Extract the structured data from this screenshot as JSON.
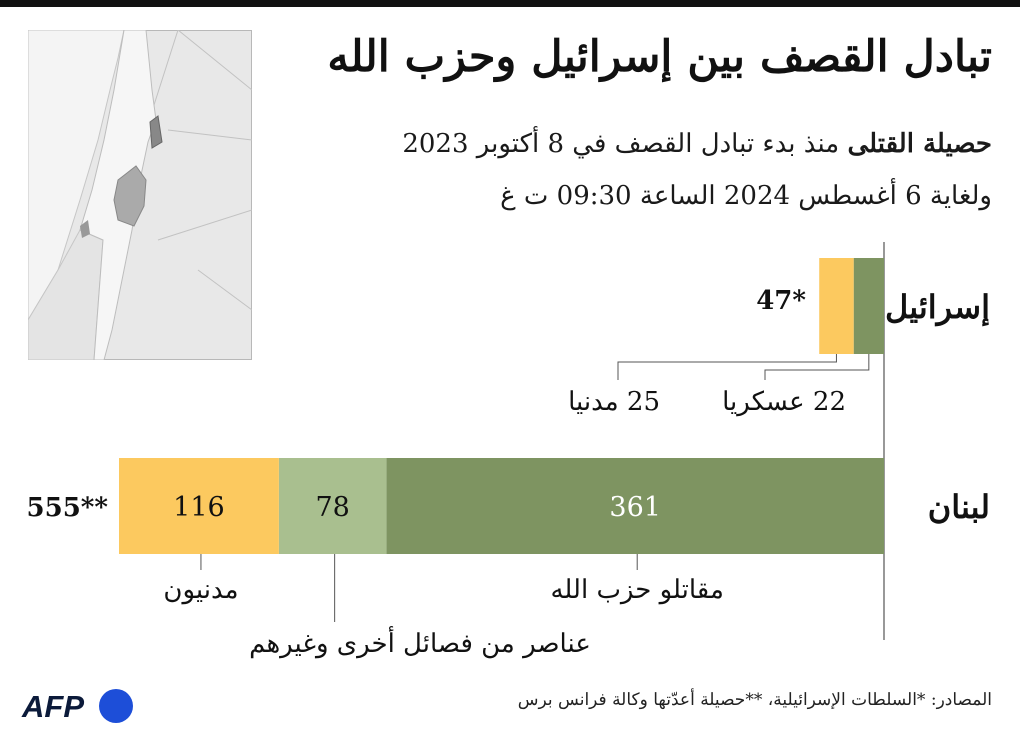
{
  "header": {
    "title": "تبادل القصف بين إسرائيل وحزب الله",
    "subtitle_bold": "حصيلة القتلى",
    "subtitle_rest": "منذ بدء تبادل القصف في 8 أكتوبر 2023",
    "subtitle_line2": "ولغاية 6 أغسطس 2024 الساعة 09:30 ت غ"
  },
  "colors": {
    "civilians": "#fcc95f",
    "soldiers": "#7e9461",
    "others": "#a9bf8f",
    "axis": "#555555",
    "map_land": "#e8e8e8",
    "map_israel": "#f6f6f6",
    "map_palestine": "#aaaaaa"
  },
  "chart_data": {
    "type": "bar",
    "orientation": "horizontal-stacked",
    "categories": [
      "إسرائيل",
      "لبنان"
    ],
    "rows": [
      {
        "label": "إسرائيل",
        "total_label": "47*",
        "segments": [
          {
            "name": "عسكريا",
            "value": 22,
            "color": "#7e9461",
            "annotation": "22 عسكريا"
          },
          {
            "name": "مدنيا",
            "value": 25,
            "color": "#fcc95f",
            "annotation": "25 مدنيا"
          }
        ]
      },
      {
        "label": "لبنان",
        "total_label": "555**",
        "segments": [
          {
            "name": "مقاتلو حزب الله",
            "value": 361,
            "color": "#7e9461",
            "value_label": "361",
            "annotation": "مقاتلو حزب الله"
          },
          {
            "name": "عناصر من فصائل أخرى وغيرهم",
            "value": 78,
            "color": "#a9bf8f",
            "value_label": "78",
            "annotation": "عناصر من فصائل أخرى وغيرهم"
          },
          {
            "name": "مدنيون",
            "value": 116,
            "color": "#fcc95f",
            "value_label": "116",
            "annotation": "مدنيون"
          }
        ]
      }
    ]
  },
  "footer": {
    "sources": "المصادر: *السلطات الإسرائيلية، **حصيلة أعدّتها وكالة فرانس برس",
    "logo": "AFP"
  }
}
